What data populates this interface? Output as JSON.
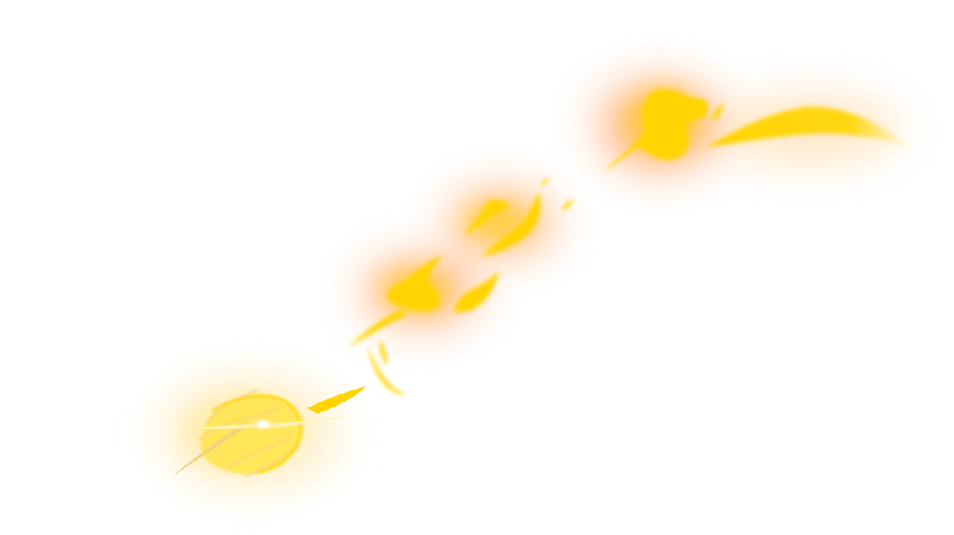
{
  "image": {
    "background_color": "#ffffff",
    "subject": "fire-streak-effect",
    "colors": {
      "core_yellow": "#ffd400",
      "bright_yellow": "#ffe54a",
      "glow_orange": "#ff7a1a",
      "spark_white": "#fffbe6",
      "pale_gold": "#f3d27a"
    }
  }
}
